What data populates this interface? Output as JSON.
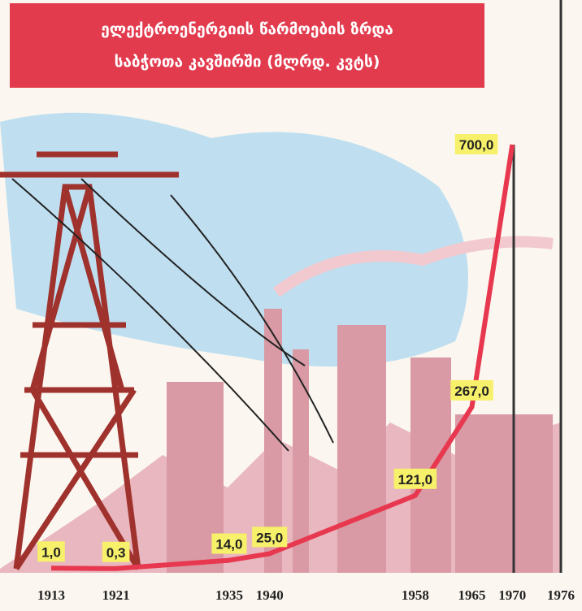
{
  "chart_data": {
    "type": "line",
    "title": "ელექტროენერგიის წარმოების ზრდა",
    "subtitle": "საბჭოთა კავშირში (მლრდ. კვტს)",
    "x": [
      1913,
      1921,
      1935,
      1940,
      1958,
      1965,
      1970,
      1976
    ],
    "xticks": [
      1913,
      1921,
      1935,
      1940,
      1958,
      1965,
      1970,
      1976
    ],
    "values": [
      1.0,
      0.3,
      14.0,
      25.0,
      121.0,
      267.0,
      700.0,
      null
    ],
    "value_labels": [
      "1,0",
      "0,3",
      "14,0",
      "25,0",
      "121,0",
      "267,0",
      "700,0",
      null
    ],
    "color": "#e8384f"
  }
}
